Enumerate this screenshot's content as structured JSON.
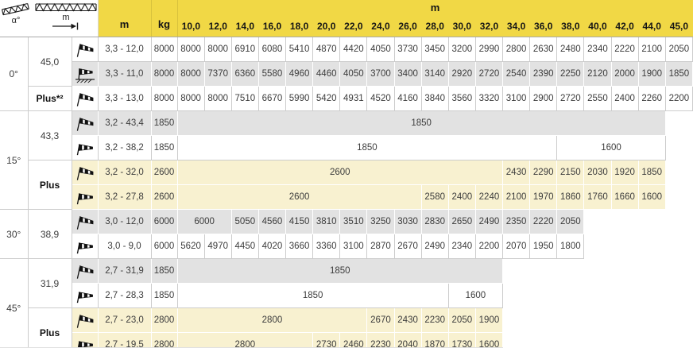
{
  "header": {
    "alpha_symbol": "α°",
    "boom_symbol_label": "m",
    "range_col_label": "m",
    "capacity_col_label": "kg",
    "length_axis_label": "m",
    "columns": [
      "10,0",
      "12,0",
      "14,0",
      "16,0",
      "18,0",
      "20,0",
      "22,0",
      "24,0",
      "26,0",
      "28,0",
      "30,0",
      "32,0",
      "34,0",
      "36,0",
      "38,0",
      "40,0",
      "42,0",
      "44,0",
      "45,0"
    ]
  },
  "colors": {
    "header_yellow": "#F1D845",
    "row_gray": "#E2E2E2",
    "row_cream": "#F8F1D0",
    "grid_gray": "#CCCCCC",
    "grid_white": "#FFFFFF"
  },
  "sections": [
    {
      "alpha": "0°",
      "groups": [
        {
          "label": "45,0",
          "bold": false,
          "rows": [
            {
              "icon": "windsock-raised",
              "range": "3,3 - 12,0",
              "kg": "8000",
              "bg": "white",
              "cells": [
                "8000",
                "8000",
                "6910",
                "6080",
                "5410",
                "4870",
                "4420",
                "4050",
                "3730",
                "3450",
                "3200",
                "2990",
                "2800",
                "2630",
                "2480",
                "2340",
                "2220",
                "2100",
                "2050"
              ]
            },
            {
              "icon": "windsock-ground",
              "range": "3,3 - 11,0",
              "kg": "8000",
              "bg": "gray",
              "cells": [
                "8000",
                "7370",
                "6360",
                "5580",
                "4960",
                "4460",
                "4050",
                "3700",
                "3400",
                "3140",
                "2920",
                "2720",
                "2540",
                "2390",
                "2250",
                "2120",
                "2000",
                "1900",
                "1850"
              ]
            }
          ]
        },
        {
          "label": "Plus*²",
          "bold": true,
          "rows": [
            {
              "icon": "windsock-raised",
              "range": "3,3 - 13,0",
              "kg": "8000",
              "bg": "white",
              "cells": [
                "8000",
                "8000",
                "7510",
                "6670",
                "5990",
                "5420",
                "4931",
                "4520",
                "4160",
                "3840",
                "3560",
                "3320",
                "3100",
                "2900",
                "2720",
                "2550",
                "2400",
                "2260",
                "2200"
              ]
            }
          ]
        }
      ]
    },
    {
      "alpha": "15°",
      "groups": [
        {
          "label": "43,3",
          "bold": false,
          "rows": [
            {
              "icon": "windsock-raised",
              "range": "3,2 - 43,4",
              "kg": "1850",
              "bg": "gray",
              "cells": [
                {
                  "v": "1850",
                  "s": 18
                },
                {
                  "v": "",
                  "s": 1
                }
              ]
            },
            {
              "icon": "windsock-horizontal",
              "range": "3,2 - 38,2",
              "kg": "1850",
              "bg": "white",
              "cells": [
                {
                  "v": "1850",
                  "s": 14
                },
                {
                  "v": "1600",
                  "s": 4
                },
                {
                  "v": "",
                  "s": 1
                }
              ]
            }
          ]
        },
        {
          "label": "Plus",
          "bold": true,
          "rows": [
            {
              "icon": "windsock-raised",
              "range": "3,2 - 32,0",
              "kg": "2600",
              "bg": "cream",
              "cells": [
                {
                  "v": "2600",
                  "s": 12
                },
                "2430",
                "2290",
                "2150",
                "2030",
                "1920",
                "1850",
                {
                  "v": "",
                  "s": 1
                }
              ]
            },
            {
              "icon": "windsock-horizontal",
              "range": "3,2 - 27,8",
              "kg": "2600",
              "bg": "cream",
              "cells": [
                {
                  "v": "2600",
                  "s": 9
                },
                "2580",
                "2400",
                "2240",
                "2100",
                "1970",
                "1860",
                "1760",
                "1660",
                "1600",
                {
                  "v": "",
                  "s": 1
                }
              ]
            }
          ]
        }
      ]
    },
    {
      "alpha": "30°",
      "groups": [
        {
          "label": "38,9",
          "bold": false,
          "rows": [
            {
              "icon": "windsock-raised",
              "range": "3,0 - 12,0",
              "kg": "6000",
              "bg": "gray",
              "cells": [
                {
                  "v": "6000",
                  "s": 2
                },
                "5050",
                "4560",
                "4150",
                "3810",
                "3510",
                "3250",
                "3030",
                "2830",
                "2650",
                "2490",
                "2350",
                "2220",
                "2050",
                {
                  "v": "",
                  "s": 4
                }
              ]
            },
            {
              "icon": "windsock-horizontal",
              "range": "3,0 - 9,0",
              "kg": "6000",
              "bg": "white",
              "cells": [
                "5620",
                "4970",
                "4450",
                "4020",
                "3660",
                "3360",
                "3100",
                "2870",
                "2670",
                "2490",
                "2340",
                "2200",
                "2070",
                "1950",
                "1800",
                {
                  "v": "",
                  "s": 4
                }
              ]
            }
          ]
        }
      ]
    },
    {
      "alpha": "45°",
      "groups": [
        {
          "label": "31,9",
          "bold": false,
          "rows": [
            {
              "icon": "windsock-raised",
              "range": "2,7 - 31,9",
              "kg": "1850",
              "bg": "gray",
              "cells": [
                {
                  "v": "1850",
                  "s": 12
                },
                {
                  "v": "",
                  "s": 7
                }
              ]
            },
            {
              "icon": "windsock-horizontal",
              "range": "2,7 - 28,3",
              "kg": "1850",
              "bg": "white",
              "cells": [
                {
                  "v": "1850",
                  "s": 10
                },
                {
                  "v": "1600",
                  "s": 2
                },
                {
                  "v": "",
                  "s": 7
                }
              ]
            }
          ]
        },
        {
          "label": "Plus",
          "bold": true,
          "rows": [
            {
              "icon": "windsock-raised",
              "range": "2,7 - 23,0",
              "kg": "2800",
              "bg": "cream",
              "cells": [
                {
                  "v": "2800",
                  "s": 7
                },
                "2670",
                "2430",
                "2230",
                "2050",
                "1900",
                {
                  "v": "",
                  "s": 7
                }
              ]
            },
            {
              "icon": "windsock-horizontal",
              "range": "2,7 - 19,5",
              "kg": "2800",
              "bg": "cream",
              "cells": [
                {
                  "v": "2800",
                  "s": 5
                },
                "2730",
                "2460",
                "2230",
                "2040",
                "1870",
                "1730",
                "1600",
                {
                  "v": "",
                  "s": 7
                }
              ]
            }
          ]
        }
      ]
    }
  ]
}
